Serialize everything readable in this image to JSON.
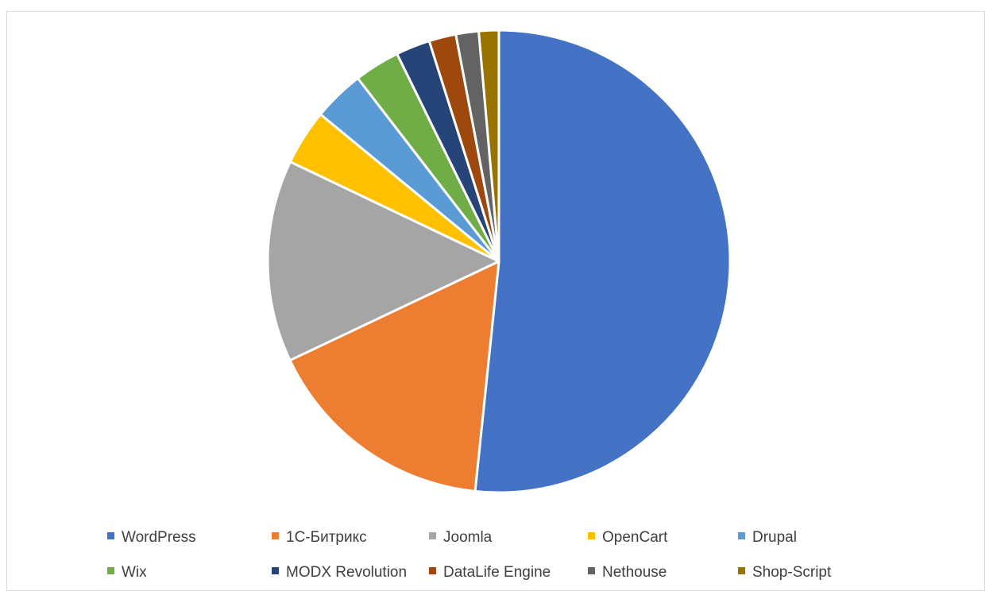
{
  "chart_data": {
    "type": "pie",
    "title": "",
    "legend_position": "bottom",
    "series": [
      {
        "name": "",
        "slices": [
          {
            "label": "WordPress",
            "value": 51.9,
            "color": "#4472C4"
          },
          {
            "label": "1С-Битрикс",
            "value": 16.4,
            "color": "#ED7D31"
          },
          {
            "label": "Joomla",
            "value": 14.2,
            "color": "#A5A5A5"
          },
          {
            "label": "OpenCart",
            "value": 3.9,
            "color": "#FFC000"
          },
          {
            "label": "Drupal",
            "value": 3.6,
            "color": "#5B9BD5"
          },
          {
            "label": "Wix",
            "value": 3.2,
            "color": "#70AD47"
          },
          {
            "label": "MODX Revolution",
            "value": 2.4,
            "color": "#264478"
          },
          {
            "label": "DataLife Engine",
            "value": 1.9,
            "color": "#9E480E"
          },
          {
            "label": "Nethouse",
            "value": 1.6,
            "color": "#636363"
          },
          {
            "label": "Shop-Script",
            "value": 1.4,
            "color": "#997300"
          }
        ]
      }
    ]
  }
}
